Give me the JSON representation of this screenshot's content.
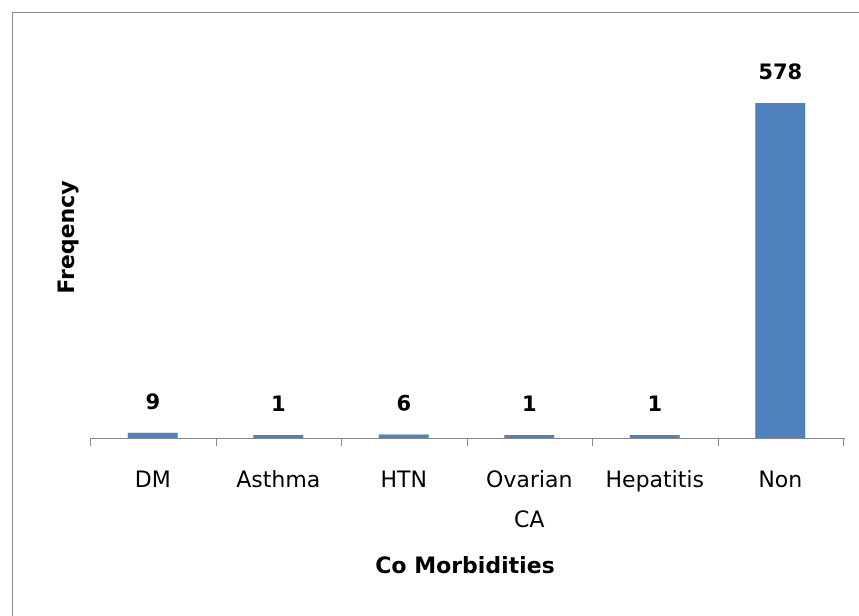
{
  "chart_data": {
    "type": "bar",
    "categories": [
      "DM",
      "Asthma",
      "HTN",
      "Ovarian CA",
      "Hepatitis",
      "Non"
    ],
    "values": [
      9,
      1,
      6,
      1,
      1,
      578
    ],
    "color": "#4f81bd",
    "xlabel": "Co Morbidities",
    "ylabel": "Freqency"
  }
}
